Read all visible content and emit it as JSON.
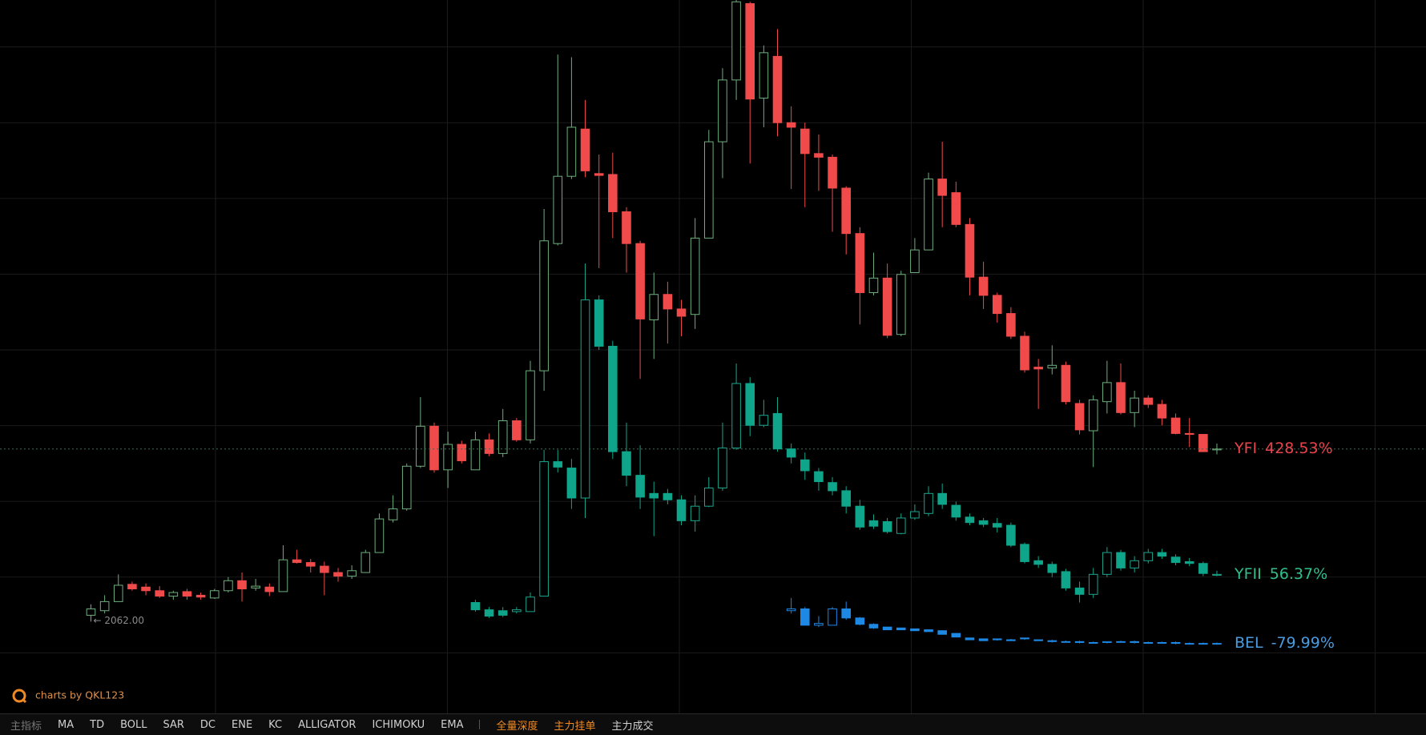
{
  "chart_data": {
    "type": "candlestick",
    "categories": [
      null,
      null,
      null,
      null,
      null,
      null,
      null,
      null,
      null,
      null,
      null,
      null,
      null,
      null,
      null,
      null,
      null,
      null,
      null,
      null,
      null,
      null,
      null,
      null,
      null,
      null,
      null,
      null,
      null,
      null,
      null,
      null,
      null,
      null,
      null,
      null,
      null,
      null,
      null,
      null,
      null,
      null,
      null,
      null,
      null,
      null,
      null,
      null,
      null,
      null,
      null,
      null,
      null,
      null,
      null,
      null,
      null,
      null,
      null,
      null,
      null,
      null,
      null,
      null,
      null,
      null,
      null,
      null,
      null,
      null,
      null,
      null,
      null,
      null,
      null,
      null,
      null,
      null,
      null,
      null,
      null,
      null,
      null
    ],
    "ylim": [
      -450,
      1905
    ],
    "yticks": [
      -250,
      0,
      250,
      500,
      750,
      1000,
      1250,
      1500,
      1750
    ],
    "grid": true,
    "annotation": "← 2062.00",
    "series": [
      {
        "name": "YFI",
        "change_label": "428.53%",
        "label_color": "#e8434b",
        "up_color": "#6fae7e",
        "down_color": "#f04a4a",
        "price_line": true,
        "candles": [
          [
            -126,
            -90,
            -147,
            -105
          ],
          [
            -111,
            -60,
            -120,
            -81
          ],
          [
            -81,
            9,
            -81,
            -27
          ],
          [
            -24,
            -15,
            -45,
            -39
          ],
          [
            -33,
            -21,
            -60,
            -45
          ],
          [
            -45,
            -30,
            -69,
            -63
          ],
          [
            -63,
            -45,
            -75,
            -51
          ],
          [
            -48,
            -39,
            -75,
            -63
          ],
          [
            -60,
            -51,
            -75,
            -66
          ],
          [
            -69,
            -39,
            -72,
            -45
          ],
          [
            -45,
            0,
            -51,
            -12
          ],
          [
            -12,
            15,
            -81,
            -39
          ],
          [
            -36,
            -6,
            -45,
            -30
          ],
          [
            -33,
            -21,
            -63,
            -48
          ],
          [
            -48,
            105,
            -48,
            57
          ],
          [
            57,
            90,
            45,
            48
          ],
          [
            48,
            60,
            15,
            36
          ],
          [
            36,
            51,
            -60,
            15
          ],
          [
            15,
            30,
            -15,
            3
          ],
          [
            3,
            39,
            -6,
            21
          ],
          [
            15,
            90,
            15,
            81
          ],
          [
            81,
            210,
            81,
            192
          ],
          [
            189,
            270,
            180,
            225
          ],
          [
            225,
            375,
            219,
            366
          ],
          [
            366,
            594,
            360,
            498
          ],
          [
            498,
            510,
            345,
            354
          ],
          [
            354,
            480,
            294,
            438
          ],
          [
            438,
            450,
            375,
            384
          ],
          [
            354,
            480,
            354,
            453
          ],
          [
            453,
            474,
            399,
            408
          ],
          [
            408,
            555,
            396,
            516
          ],
          [
            516,
            525,
            447,
            453
          ],
          [
            453,
            714,
            441,
            681
          ],
          [
            681,
            1215,
            615,
            1110
          ],
          [
            1101,
            1725,
            1095,
            1323
          ],
          [
            1323,
            1716,
            1314,
            1485
          ],
          [
            1479,
            1575,
            1320,
            1341
          ],
          [
            1332,
            1395,
            1020,
            1326
          ],
          [
            1329,
            1401,
            1119,
            1206
          ],
          [
            1206,
            1221,
            1005,
            1101
          ],
          [
            1101,
            1110,
            654,
            852
          ],
          [
            849,
            1005,
            720,
            933
          ],
          [
            933,
            975,
            771,
            885
          ],
          [
            885,
            915,
            795,
            861
          ],
          [
            867,
            1185,
            819,
            1119
          ],
          [
            1119,
            1476,
            1119,
            1437
          ],
          [
            1437,
            1680,
            1317,
            1641
          ],
          [
            1641,
            1905,
            1575,
            1899
          ],
          [
            1893,
            1899,
            1365,
            1578
          ],
          [
            1581,
            1755,
            1485,
            1731
          ],
          [
            1719,
            1809,
            1455,
            1500
          ],
          [
            1500,
            1554,
            1281,
            1485
          ],
          [
            1479,
            1500,
            1221,
            1398
          ],
          [
            1398,
            1461,
            1275,
            1386
          ],
          [
            1386,
            1395,
            1140,
            1284
          ],
          [
            1284,
            1290,
            1065,
            1134
          ],
          [
            1134,
            1155,
            834,
            939
          ],
          [
            939,
            1071,
            930,
            987
          ],
          [
            987,
            1035,
            789,
            798
          ],
          [
            801,
            1011,
            795,
            999
          ],
          [
            1005,
            1119,
            1005,
            1080
          ],
          [
            1080,
            1335,
            1080,
            1314
          ],
          [
            1314,
            1437,
            1155,
            1260
          ],
          [
            1269,
            1305,
            1155,
            1164
          ],
          [
            1164,
            1185,
            930,
            990
          ],
          [
            990,
            1041,
            885,
            930
          ],
          [
            930,
            939,
            840,
            870
          ],
          [
            870,
            891,
            786,
            795
          ],
          [
            795,
            810,
            675,
            684
          ],
          [
            693,
            720,
            555,
            687
          ],
          [
            690,
            765,
            669,
            699
          ],
          [
            699,
            711,
            570,
            579
          ],
          [
            573,
            585,
            471,
            486
          ],
          [
            483,
            600,
            363,
            585
          ],
          [
            579,
            714,
            540,
            642
          ],
          [
            642,
            705,
            537,
            543
          ],
          [
            543,
            615,
            495,
            591
          ],
          [
            591,
            600,
            558,
            570
          ],
          [
            570,
            585,
            501,
            525
          ],
          [
            525,
            540,
            471,
            474
          ],
          [
            474,
            525,
            429,
            471
          ],
          [
            471,
            471,
            414,
            414
          ],
          [
            420,
            441,
            405,
            423
          ]
        ]
      },
      {
        "name": "YFII",
        "change_label": "56.37%",
        "label_color": "#2fbf8a",
        "up_color": "#1aa58c",
        "down_color": "#0ea58a",
        "price_line": false,
        "candles": [
          null,
          null,
          null,
          null,
          null,
          null,
          null,
          null,
          null,
          null,
          null,
          null,
          null,
          null,
          null,
          null,
          null,
          null,
          null,
          null,
          null,
          null,
          null,
          null,
          null,
          null,
          null,
          null,
          [
            -84,
            -75,
            -114,
            -108
          ],
          [
            -108,
            -99,
            -135,
            -129
          ],
          [
            -111,
            -99,
            -132,
            -126
          ],
          [
            -114,
            -99,
            -120,
            -108
          ],
          [
            -114,
            -51,
            -114,
            -66
          ],
          [
            -63,
            420,
            -63,
            381
          ],
          [
            381,
            420,
            345,
            363
          ],
          [
            360,
            390,
            225,
            261
          ],
          [
            261,
            1035,
            195,
            915
          ],
          [
            915,
            930,
            750,
            762
          ],
          [
            762,
            780,
            390,
            414
          ],
          [
            414,
            510,
            300,
            336
          ],
          [
            336,
            435,
            225,
            264
          ],
          [
            276,
            315,
            135,
            261
          ],
          [
            276,
            291,
            240,
            255
          ],
          [
            255,
            270,
            171,
            186
          ],
          [
            186,
            270,
            150,
            234
          ],
          [
            234,
            330,
            231,
            294
          ],
          [
            294,
            510,
            285,
            426
          ],
          [
            426,
            705,
            420,
            639
          ],
          [
            639,
            660,
            465,
            501
          ],
          [
            501,
            585,
            495,
            534
          ],
          [
            540,
            594,
            414,
            423
          ],
          [
            423,
            441,
            375,
            396
          ],
          [
            387,
            411,
            321,
            351
          ],
          [
            348,
            360,
            285,
            315
          ],
          [
            312,
            330,
            270,
            285
          ],
          [
            285,
            300,
            210,
            234
          ],
          [
            234,
            255,
            156,
            165
          ],
          [
            186,
            207,
            159,
            168
          ],
          [
            183,
            195,
            144,
            150
          ],
          [
            144,
            210,
            141,
            195
          ],
          [
            195,
            240,
            189,
            216
          ],
          [
            210,
            300,
            201,
            276
          ],
          [
            276,
            309,
            225,
            240
          ],
          [
            237,
            249,
            186,
            198
          ],
          [
            198,
            210,
            171,
            180
          ],
          [
            186,
            195,
            165,
            174
          ],
          [
            177,
            195,
            147,
            165
          ],
          [
            171,
            180,
            99,
            105
          ],
          [
            108,
            114,
            45,
            51
          ],
          [
            54,
            69,
            30,
            42
          ],
          [
            42,
            51,
            0,
            15
          ],
          [
            18,
            27,
            -45,
            -36
          ],
          [
            -36,
            -15,
            -84,
            -57
          ],
          [
            -57,
            30,
            -69,
            9
          ],
          [
            9,
            99,
            0,
            81
          ],
          [
            81,
            90,
            21,
            30
          ],
          [
            30,
            69,
            15,
            54
          ],
          [
            54,
            93,
            45,
            81
          ],
          [
            81,
            93,
            60,
            69
          ],
          [
            66,
            75,
            39,
            48
          ],
          [
            51,
            63,
            36,
            45
          ],
          [
            45,
            51,
            3,
            12
          ],
          [
            6,
            21,
            3,
            9
          ]
        ]
      },
      {
        "name": "BEL",
        "change_label": "-79.99%",
        "label_color": "#4a9be0",
        "up_color": "#1e88e5",
        "down_color": "#1e88e5",
        "price_line": false,
        "candles": [
          null,
          null,
          null,
          null,
          null,
          null,
          null,
          null,
          null,
          null,
          null,
          null,
          null,
          null,
          null,
          null,
          null,
          null,
          null,
          null,
          null,
          null,
          null,
          null,
          null,
          null,
          null,
          null,
          null,
          null,
          null,
          null,
          null,
          null,
          null,
          null,
          null,
          null,
          null,
          null,
          null,
          null,
          null,
          null,
          null,
          null,
          null,
          null,
          null,
          null,
          null,
          [
            -111,
            -69,
            -120,
            -105
          ],
          [
            -105,
            -99,
            -159,
            -159
          ],
          [
            -159,
            -129,
            -165,
            -153
          ],
          [
            -159,
            -99,
            -159,
            -105
          ],
          [
            -105,
            -81,
            -141,
            -135
          ],
          [
            -135,
            -132,
            -159,
            -156
          ],
          [
            -156,
            -153,
            -171,
            -168
          ],
          [
            -165,
            -165,
            -174,
            -174
          ],
          [
            -168,
            -168,
            -174,
            -174
          ],
          [
            -171,
            -171,
            -177,
            -177
          ],
          [
            -174,
            -174,
            -180,
            -180
          ],
          [
            -177,
            -177,
            -189,
            -189
          ],
          [
            -186,
            -186,
            -198,
            -198
          ],
          [
            -201,
            -201,
            -207,
            -207
          ],
          [
            -204,
            -204,
            -210,
            -210
          ],
          [
            -204,
            -204,
            -210,
            -207
          ],
          [
            -207,
            -204,
            -210,
            -210
          ],
          [
            -201,
            -201,
            -207,
            -204
          ],
          [
            -207,
            -207,
            -210,
            -210
          ],
          [
            -210,
            -207,
            -216,
            -213
          ],
          [
            -213,
            -210,
            -216,
            -213
          ],
          [
            -213,
            -210,
            -219,
            -216
          ],
          [
            -216,
            -213,
            -219,
            -216
          ],
          [
            -216,
            -213,
            -219,
            -213
          ],
          [
            -213,
            -210,
            -216,
            -213
          ],
          [
            -213,
            -210,
            -219,
            -216
          ],
          [
            -216,
            -213,
            -219,
            -216
          ],
          [
            -216,
            -213,
            -219,
            -216
          ],
          [
            -216,
            -213,
            -222,
            -219
          ],
          [
            -219,
            -216,
            -222,
            -219
          ],
          [
            -219,
            -216,
            -222,
            -219
          ],
          [
            -219,
            -216,
            -222,
            -219
          ]
        ]
      }
    ]
  },
  "watermark": "charts by QKL123",
  "toolbar": {
    "label": "主指标",
    "indicators": [
      "MA",
      "TD",
      "BOLL",
      "SAR",
      "DC",
      "ENE",
      "KC",
      "ALLIGATOR",
      "ICHIMOKU",
      "EMA"
    ],
    "tools": [
      {
        "text": "全量深度",
        "color": "#f08a24"
      },
      {
        "text": "主力挂单",
        "color": "#f08a24"
      },
      {
        "text": "主力成交",
        "color": "#d0d0d0"
      }
    ]
  }
}
